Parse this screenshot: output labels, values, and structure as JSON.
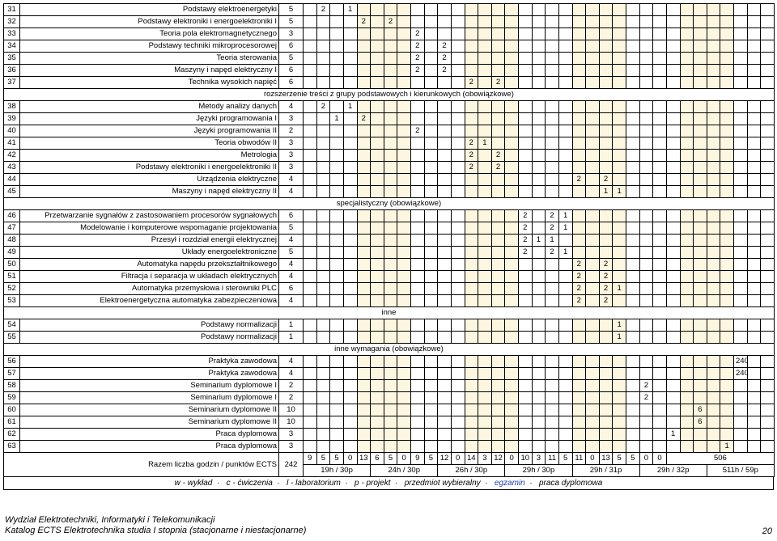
{
  "cols": 35,
  "alt_cols": [
    6,
    7,
    8,
    9,
    14,
    15,
    16,
    17,
    22,
    23,
    24,
    25,
    30,
    31,
    32,
    33
  ],
  "sections": {
    "s1": "rozszerzenie treści z grupy podstawowych i kierunkowych (obowiązkowe)",
    "s2": "specjalistyczny (obowiązkowe)",
    "s3": "inne",
    "s4": "inne wymagania (obowiązkowe)"
  },
  "rows": [
    {
      "no": "31",
      "name": "Podstawy elektroenergetyki",
      "main": "5",
      "cells": {
        "3": "2",
        "5": "1"
      }
    },
    {
      "no": "32",
      "name": "Podstawy elektroniki i energoelektroniki I",
      "main": "5",
      "cells": {
        "6": "2",
        "8": "2"
      }
    },
    {
      "no": "33",
      "name": "Teoria pola elektromagnetycznego",
      "main": "3",
      "cells": {
        "10": "2"
      }
    },
    {
      "no": "34",
      "name": "Podstawy techniki mikroprocesorowej",
      "main": "6",
      "cells": {
        "10": "2",
        "12": "2"
      }
    },
    {
      "no": "35",
      "name": "Teoria sterowania",
      "main": "5",
      "cells": {
        "10": "2",
        "12": "2"
      }
    },
    {
      "no": "36",
      "name": "Maszyny i napęd elektryczny I",
      "main": "6",
      "cells": {
        "10": "2",
        "12": "2"
      }
    },
    {
      "no": "37",
      "name": "Technika wysokich napięć",
      "main": "6",
      "cells": {
        "14": "2",
        "16": "2"
      }
    },
    {
      "section": "s1"
    },
    {
      "no": "38",
      "name": "Metody analizy danych",
      "main": "4",
      "cells": {
        "3": "2",
        "5": "1"
      }
    },
    {
      "no": "39",
      "name": "Języki programowania I",
      "main": "3",
      "cells": {
        "4": "1",
        "6": "2"
      }
    },
    {
      "no": "40",
      "name": "Języki programowania II",
      "main": "2",
      "cells": {
        "10": "2"
      }
    },
    {
      "no": "41",
      "name": "Teoria obwodów II",
      "main": "3",
      "cells": {
        "14": "2",
        "15": "1"
      }
    },
    {
      "no": "42",
      "name": "Metrologia",
      "main": "3",
      "cells": {
        "14": "2",
        "16": "2"
      }
    },
    {
      "no": "43",
      "name": "Podstawy elektroniki i energoelektroniki II",
      "main": "3",
      "cells": {
        "14": "2",
        "16": "2"
      }
    },
    {
      "no": "44",
      "name": "Urządzenia elektryczne",
      "main": "4",
      "cells": {
        "22": "2",
        "24": "2"
      }
    },
    {
      "no": "45",
      "name": "Maszyny i napęd elektryczny II",
      "main": "4",
      "cells": {
        "24": "1",
        "25": "1"
      }
    },
    {
      "section": "s2"
    },
    {
      "no": "46",
      "name": "Przetwarzanie sygnałów z zastosowaniem procesorów sygnałowych",
      "main": "6",
      "cells": {
        "18": "2",
        "20": "2",
        "21": "1"
      }
    },
    {
      "no": "47",
      "name": "Modelowanie i komputerowe wspomaganie projektowania",
      "main": "5",
      "cells": {
        "18": "2",
        "20": "2",
        "21": "1"
      }
    },
    {
      "no": "48",
      "name": "Przesył i rozdział energii elektrycznej",
      "main": "4",
      "cells": {
        "18": "2",
        "19": "1",
        "20": "1"
      }
    },
    {
      "no": "49",
      "name": "Układy energoelektroniczne",
      "main": "5",
      "cells": {
        "18": "2",
        "20": "2",
        "21": "1"
      }
    },
    {
      "no": "50",
      "name": "Automatyka napędu przekształtnikowego",
      "main": "4",
      "cells": {
        "22": "2",
        "24": "2"
      }
    },
    {
      "no": "51",
      "name": "Filtracja i separacja w układach elektrycznych",
      "main": "4",
      "cells": {
        "22": "2",
        "24": "2"
      }
    },
    {
      "no": "52",
      "name": "Automatyka przemysłowa i sterowniki PLC",
      "main": "6",
      "cells": {
        "22": "2",
        "24": "2",
        "25": "1"
      }
    },
    {
      "no": "53",
      "name": "Elektroenergetyczna automatyka zabezpieczeniowa",
      "main": "4",
      "cells": {
        "22": "2",
        "24": "2"
      }
    },
    {
      "section": "s3"
    },
    {
      "no": "54",
      "name": "Podstawy normalizacji",
      "main": "1",
      "cells": {
        "25": "1"
      }
    },
    {
      "no": "55",
      "name": "Podstawy normalizacji",
      "main": "1",
      "cells": {
        "25": "1"
      }
    },
    {
      "section": "s4"
    },
    {
      "no": "56",
      "name": "Praktyka zawodowa",
      "main": "4",
      "cells": {
        "34": "240"
      }
    },
    {
      "no": "57",
      "name": "Praktyka zawodowa",
      "main": "4",
      "cells": {
        "34": "240"
      }
    },
    {
      "no": "58",
      "name": "Seminarium dyplomowe I",
      "main": "2",
      "cells": {
        "27": "2"
      }
    },
    {
      "no": "59",
      "name": "Seminarium dyplomowe I",
      "main": "2",
      "cells": {
        "27": "2"
      }
    },
    {
      "no": "60",
      "name": "Seminarium dyplomowe II",
      "main": "10",
      "cells": {
        "31": "6"
      }
    },
    {
      "no": "61",
      "name": "Seminarium dyplomowe II",
      "main": "10",
      "cells": {
        "31": "6"
      }
    },
    {
      "no": "62",
      "name": "Praca dyplomowa",
      "main": "3",
      "cells": {
        "29": "1"
      }
    },
    {
      "no": "63",
      "name": "Praca dyplomowa",
      "main": "3",
      "cells": {
        "33": "1"
      }
    }
  ],
  "sumrow1": {
    "label": "Razem liczba godzin / punktów ECTS",
    "total": "242",
    "cells": [
      "9",
      "5",
      "5",
      "0",
      "13",
      "6",
      "5",
      "0",
      "9",
      "5",
      "12",
      "0",
      "14",
      "3",
      "12",
      "0",
      "10",
      "3",
      "11",
      "5",
      "11",
      "0",
      "13",
      "5",
      "5",
      "0",
      "0",
      "506"
    ]
  },
  "sumrow2": {
    "cells": [
      "19h / 30p",
      "24h / 30p",
      "26h / 30p",
      "29h / 30p",
      "29h / 31p",
      "29h / 32p",
      "511h / 59p"
    ]
  },
  "legend": {
    "w": "w - wykład",
    "c": "c - ćwiczenia",
    "l": "l - laboratorium",
    "p": "p - projekt",
    "pw": "przedmiot wybieralny",
    "e": "egzamin",
    "pd": "praca dyplomowa"
  },
  "footer": {
    "l1": "Wydział Elektrotechniki, Informatyki i Telekomunikacji",
    "l2": "Katalog ECTS Elektrotechnika studia I stopnia (stacjonarne i niestacjonarne)",
    "page": "20"
  }
}
